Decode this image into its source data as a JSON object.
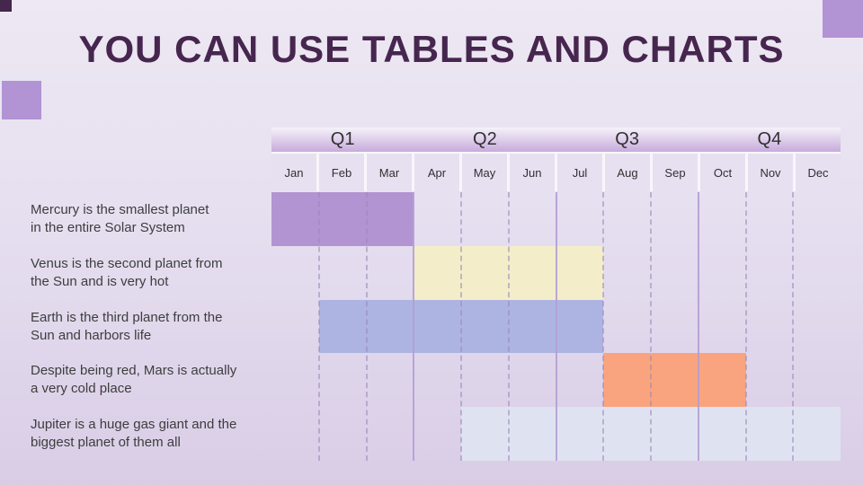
{
  "slide_title": "YOU CAN USE TABLES AND CHARTS",
  "colors": {
    "bg_top": "#ede8f3",
    "bg_bottom": "#d9cde6",
    "title_color": "#46264e",
    "dark_square": "#45264c",
    "accent_square": "#b293d3",
    "q_grad_top": "#f5f1f9",
    "q_grad_bottom": "#c7abdc",
    "month_bg": "#e7e0f1",
    "month_sep": "#f9f6fb",
    "grid_dashed": "#9b88b8",
    "grid_solid": "#b49fd3",
    "header_text": "#303030",
    "label_text": "#3d3d3d"
  },
  "chart_data": {
    "type": "gantt",
    "title": "YOU CAN USE TABLES AND CHARTS",
    "quarters": [
      "Q1",
      "Q2",
      "Q3",
      "Q4"
    ],
    "months": [
      "Jan",
      "Feb",
      "Mar",
      "Apr",
      "May",
      "Jun",
      "Jul",
      "Aug",
      "Sep",
      "Oct",
      "Nov",
      "Dec"
    ],
    "grid": {
      "month_lines": "dashed",
      "quarter_lines": "solid"
    },
    "tasks": [
      {
        "name": "mercury",
        "label_lines": [
          "Mercury is the smallest planet",
          "in the entire Solar System"
        ],
        "start_month": "Jan",
        "end_month": "Mar",
        "start_index": 0,
        "end_index": 3,
        "color": "#b294d2"
      },
      {
        "name": "venus",
        "label_lines": [
          "Venus is the second planet from",
          "the Sun and is very hot"
        ],
        "start_month": "Apr",
        "end_month": "Jul",
        "start_index": 3,
        "end_index": 7,
        "color": "#f3edca"
      },
      {
        "name": "earth",
        "label_lines": [
          "Earth is the third planet from the",
          "Sun and harbors life"
        ],
        "start_month": "Feb",
        "end_month": "Jul",
        "start_index": 1,
        "end_index": 7,
        "color": "#adb4e2"
      },
      {
        "name": "mars",
        "label_lines": [
          "Despite being red, Mars is actually",
          "a very cold place"
        ],
        "start_month": "Aug",
        "end_month": "Oct",
        "start_index": 7,
        "end_index": 10,
        "color": "#f9a47e"
      },
      {
        "name": "jupiter",
        "label_lines": [
          "Jupiter is a huge gas giant and the",
          "biggest planet of them all"
        ],
        "start_month": "May",
        "end_month": "Dec",
        "start_index": 4,
        "end_index": 12,
        "color": "#dfe3f1"
      }
    ]
  }
}
